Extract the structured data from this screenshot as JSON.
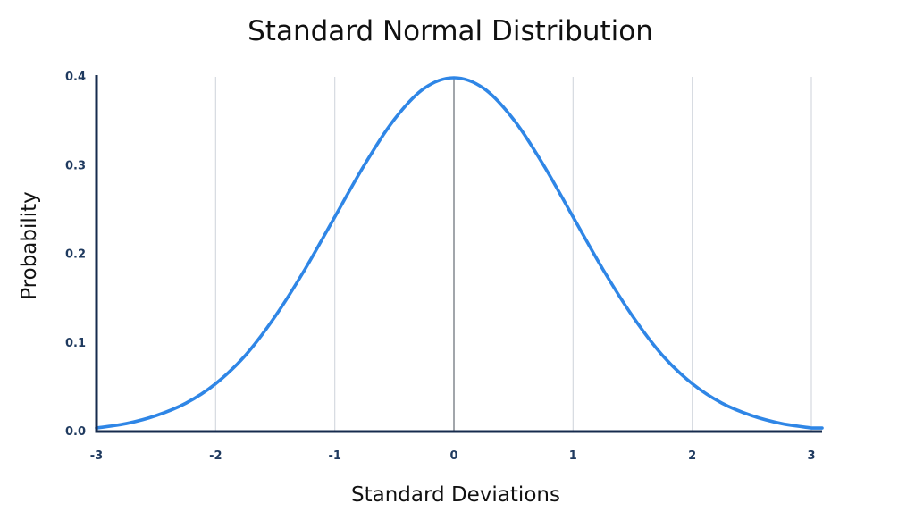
{
  "chart_data": {
    "type": "line",
    "title": "Standard Normal Distribution",
    "xlabel": "Standard Deviations",
    "ylabel": "Probability",
    "xlim": [
      -3,
      3
    ],
    "ylim": [
      0,
      0.4
    ],
    "x_ticks": [
      -3,
      -2,
      -1,
      0,
      1,
      2,
      3
    ],
    "x_tick_labels": [
      "-3",
      "-2",
      "-1",
      "0",
      "1",
      "2",
      "3"
    ],
    "y_ticks": [
      0,
      0.1,
      0.2,
      0.3,
      0.4
    ],
    "y_tick_labels": [
      "0.0",
      "0.1",
      "0.2",
      "0.3",
      "0.4"
    ],
    "grid": {
      "vertical": true,
      "horizontal": false
    },
    "legend": "none",
    "colors": {
      "line": "#2f86e6",
      "axis": "#162b4d",
      "grid": "#d5d9e0",
      "zero_line": "#8a8f96",
      "tick_text": "#1f3a5f"
    },
    "series": [
      {
        "x": [
          -3,
          -2.75,
          -2.5,
          -2.25,
          -2,
          -1.75,
          -1.5,
          -1.25,
          -1,
          -0.75,
          -0.5,
          -0.25,
          0,
          0.25,
          0.5,
          0.75,
          1,
          1.25,
          1.5,
          1.75,
          2,
          2.25,
          2.5,
          2.75,
          3
        ],
        "values": [
          0.004,
          0.009,
          0.018,
          0.032,
          0.054,
          0.086,
          0.13,
          0.183,
          0.242,
          0.301,
          0.352,
          0.387,
          0.399,
          0.387,
          0.352,
          0.301,
          0.242,
          0.183,
          0.13,
          0.086,
          0.054,
          0.032,
          0.018,
          0.009,
          0.004
        ]
      }
    ]
  }
}
